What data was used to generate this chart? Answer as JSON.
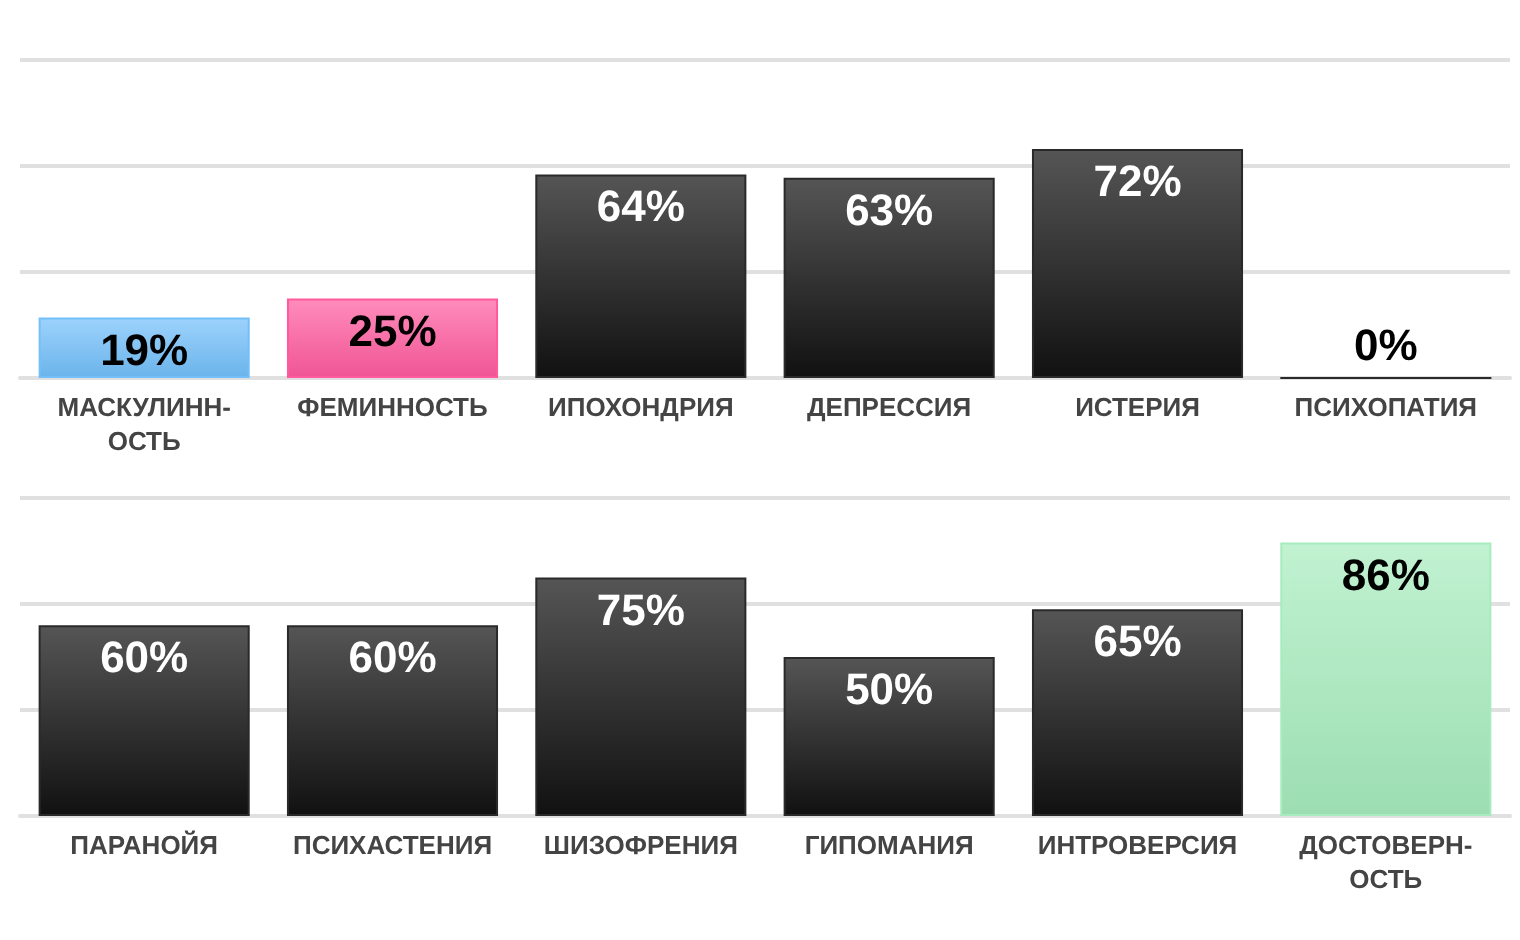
{
  "chart_data": [
    {
      "type": "bar",
      "categories": [
        "МАСКУЛИНН-\nОСТЬ",
        "ФЕМИННОСТЬ",
        "ИПОХОНДРИЯ",
        "ДЕПРЕССИЯ",
        "ИСТЕРИЯ",
        "ПСИХОПАТИЯ"
      ],
      "values": [
        19,
        25,
        64,
        63,
        72,
        0
      ],
      "colors": [
        "#72bffa",
        "#ff5a9e",
        "#2a2a2a",
        "#2a2a2a",
        "#2a2a2a",
        "#2a2a2a"
      ],
      "value_labels": [
        "19%",
        "25%",
        "64%",
        "63%",
        "72%",
        "0%"
      ],
      "ylim": [
        0,
        100
      ],
      "yticks": [
        {
          "value": 0,
          "label": null
        },
        {
          "value": 33.3,
          "label": null
        },
        {
          "value": 66.7,
          "label": null
        },
        {
          "value": 100,
          "label": null
        }
      ],
      "grid": "y",
      "tick_labels": "x"
    },
    {
      "type": "bar",
      "categories": [
        "ПАРАНОЙЯ",
        "ПСИХАСТЕНИЯ",
        "ШИЗОФРЕНИЯ",
        "ГИПОМАНИЯ",
        "ИНТРОВЕРСИЯ",
        "ДОСТОВЕРН-\nОСТЬ"
      ],
      "values": [
        60,
        60,
        75,
        50,
        65,
        86
      ],
      "colors": [
        "#2a2a2a",
        "#2a2a2a",
        "#2a2a2a",
        "#2a2a2a",
        "#2a2a2a",
        "#a6ecbd"
      ],
      "value_labels": [
        "60%",
        "60%",
        "75%",
        "50%",
        "65%",
        "86%"
      ],
      "ylim": [
        0,
        100
      ],
      "yticks": [
        {
          "value": 0,
          "label": null
        },
        {
          "value": 33.3,
          "label": null
        },
        {
          "value": 66.7,
          "label": null
        },
        {
          "value": 100,
          "label": null
        }
      ],
      "grid": "y",
      "tick_labels": "x"
    }
  ]
}
